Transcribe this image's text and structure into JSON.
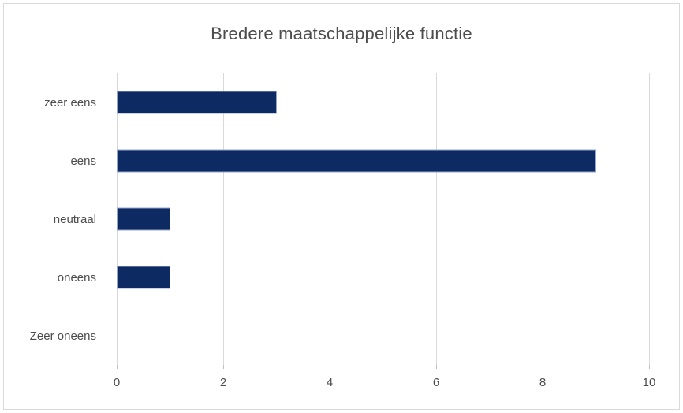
{
  "title": "Bredere maatschappelijke functie",
  "colors": {
    "bar_fill": "#0d2a63",
    "bar_border": "#93a5ce",
    "gridline": "#d9d9d9",
    "tick_mark": "#bfbfbf",
    "text": "#4d4d4d",
    "chart_border": "#d9d9d9",
    "background": "#ffffff"
  },
  "chart_data": {
    "type": "bar",
    "orientation": "horizontal",
    "title": "Bredere maatschappelijke functie",
    "categories": [
      "zeer eens",
      "eens",
      "neutraal",
      "oneens",
      "Zeer oneens"
    ],
    "values": [
      3,
      9,
      1,
      1,
      0
    ],
    "xlabel": "",
    "ylabel": "",
    "xlim": [
      0,
      10
    ],
    "xticks": [
      0,
      2,
      4,
      6,
      8,
      10
    ],
    "grid": true,
    "legend": false
  }
}
